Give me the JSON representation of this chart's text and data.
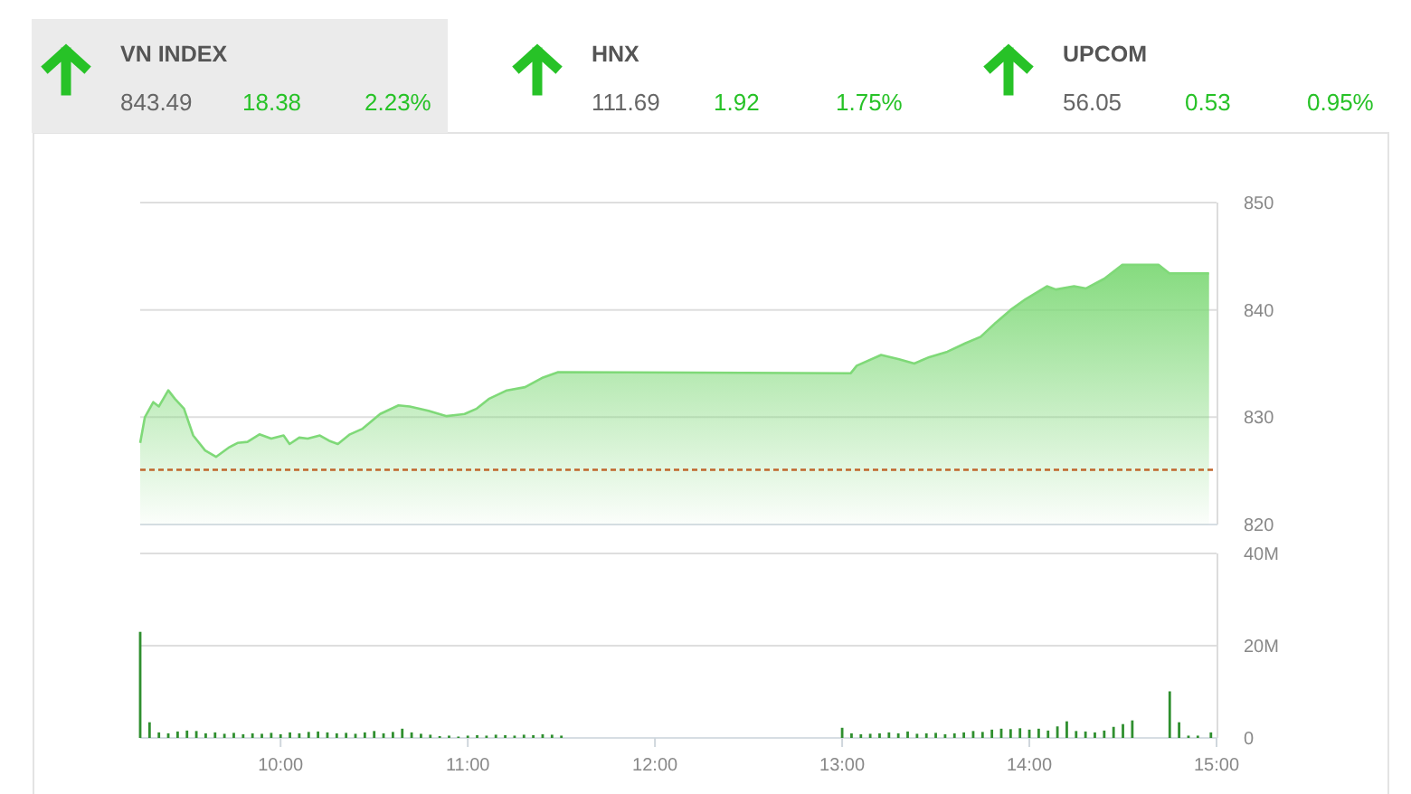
{
  "chart_data": [
    {
      "type": "other",
      "title": "VN INDEX",
      "annotations": [
        "843.49",
        "18.38",
        "2.23%"
      ],
      "color": "#27c227"
    },
    {
      "type": "other",
      "title": "HNX",
      "annotations": [
        "111.69",
        "1.92",
        "1.75%"
      ],
      "color": "#27c227"
    },
    {
      "type": "other",
      "title": "UPCOM",
      "annotations": [
        "56.05",
        "0.53",
        "0.95%"
      ],
      "color": "#27c227"
    },
    {
      "type": "area",
      "color": "#7fd978",
      "xlim": [
        9.25,
        15
      ],
      "ylim": [
        820,
        850
      ],
      "yticks": [
        820,
        830,
        840,
        850
      ],
      "grid": "y",
      "tick_labels": "y",
      "x": [
        9.25,
        9.275,
        9.32,
        9.35,
        9.4,
        9.436,
        9.484,
        9.533,
        9.597,
        9.655,
        9.726,
        9.77,
        9.823,
        9.887,
        9.95,
        10.016,
        10.048,
        10.1,
        10.145,
        10.21,
        10.26,
        10.306,
        10.37,
        10.435,
        10.532,
        10.63,
        10.69,
        10.79,
        10.887,
        10.983,
        11.048,
        11.112,
        11.209,
        11.306,
        11.402,
        11.483,
        13.046,
        13.078,
        13.208,
        13.304,
        13.385,
        13.465,
        13.562,
        13.659,
        13.74,
        13.82,
        13.9,
        13.98,
        14.094,
        14.142,
        14.239,
        14.303,
        14.4,
        14.497,
        14.69,
        14.748,
        14.96
      ],
      "values": [
        827.6,
        830.0,
        831.4,
        831.0,
        832.5,
        831.7,
        830.8,
        828.3,
        826.9,
        826.3,
        827.2,
        827.6,
        827.7,
        828.4,
        828.0,
        828.3,
        827.5,
        828.1,
        828.0,
        828.3,
        827.8,
        827.5,
        828.4,
        828.9,
        830.3,
        831.1,
        831.0,
        830.6,
        830.1,
        830.3,
        830.8,
        831.7,
        832.5,
        832.8,
        833.7,
        834.2,
        834.1,
        834.8,
        835.8,
        835.4,
        835.0,
        835.6,
        836.1,
        836.9,
        837.5,
        838.8,
        840.0,
        841.0,
        842.2,
        841.9,
        842.2,
        842.0,
        842.9,
        844.2,
        844.2,
        843.4,
        843.4
      ],
      "ref_lines": [
        {
          "axis": "y",
          "value": 825.1,
          "color": "#c0652b",
          "line_style": "dashed"
        }
      ]
    },
    {
      "type": "bar",
      "color": "#2f8f2f",
      "xlim": [
        9.25,
        15
      ],
      "ylim": [
        0,
        40
      ],
      "yticks": [
        0,
        {
          "value": 20,
          "label": "20M"
        },
        {
          "value": 40,
          "label": "40M"
        }
      ],
      "xticks": [
        {
          "value": 10,
          "label": "10:00"
        },
        {
          "value": 11,
          "label": "11:00"
        },
        {
          "value": 12,
          "label": "12:00"
        },
        {
          "value": 13,
          "label": "13:00"
        },
        {
          "value": 14,
          "label": "14:00"
        },
        {
          "value": 15,
          "label": "15:00"
        }
      ],
      "grid": "y",
      "x": [
        9.25,
        9.3,
        9.35,
        9.4,
        9.45,
        9.5,
        9.55,
        9.6,
        9.65,
        9.7,
        9.75,
        9.8,
        9.85,
        9.9,
        9.95,
        10.0,
        10.05,
        10.1,
        10.15,
        10.2,
        10.25,
        10.3,
        10.35,
        10.4,
        10.45,
        10.5,
        10.55,
        10.6,
        10.65,
        10.7,
        10.75,
        10.8,
        10.85,
        10.9,
        10.95,
        11.0,
        11.05,
        11.1,
        11.15,
        11.2,
        11.25,
        11.3,
        11.35,
        11.4,
        11.45,
        11.5,
        13.0,
        13.05,
        13.1,
        13.15,
        13.2,
        13.25,
        13.3,
        13.35,
        13.4,
        13.45,
        13.5,
        13.55,
        13.6,
        13.65,
        13.7,
        13.75,
        13.8,
        13.85,
        13.9,
        13.95,
        14.0,
        14.05,
        14.1,
        14.15,
        14.2,
        14.25,
        14.3,
        14.35,
        14.4,
        14.45,
        14.5,
        14.55,
        14.75,
        14.8,
        14.85,
        14.9,
        14.97
      ],
      "values": [
        23.0,
        3.4,
        1.2,
        1.0,
        1.4,
        1.6,
        1.5,
        1.0,
        1.2,
        0.9,
        1.1,
        0.8,
        1.0,
        0.9,
        1.1,
        0.8,
        1.2,
        1.0,
        1.3,
        1.4,
        1.2,
        1.0,
        1.1,
        0.9,
        1.2,
        1.5,
        1.0,
        1.3,
        2.0,
        1.2,
        0.9,
        0.7,
        0.4,
        0.5,
        0.3,
        0.5,
        0.6,
        0.5,
        0.7,
        0.6,
        0.5,
        0.7,
        0.6,
        0.8,
        0.7,
        0.5,
        2.2,
        1.0,
        0.8,
        0.9,
        1.0,
        1.2,
        1.0,
        1.4,
        0.9,
        1.0,
        1.1,
        0.8,
        1.0,
        1.2,
        1.5,
        1.3,
        1.8,
        2.0,
        1.9,
        2.1,
        1.8,
        2.0,
        1.6,
        2.5,
        3.6,
        1.5,
        1.4,
        1.2,
        1.6,
        2.4,
        3.0,
        3.8,
        10.1,
        3.4,
        0.5,
        0.5,
        1.2
      ]
    }
  ]
}
